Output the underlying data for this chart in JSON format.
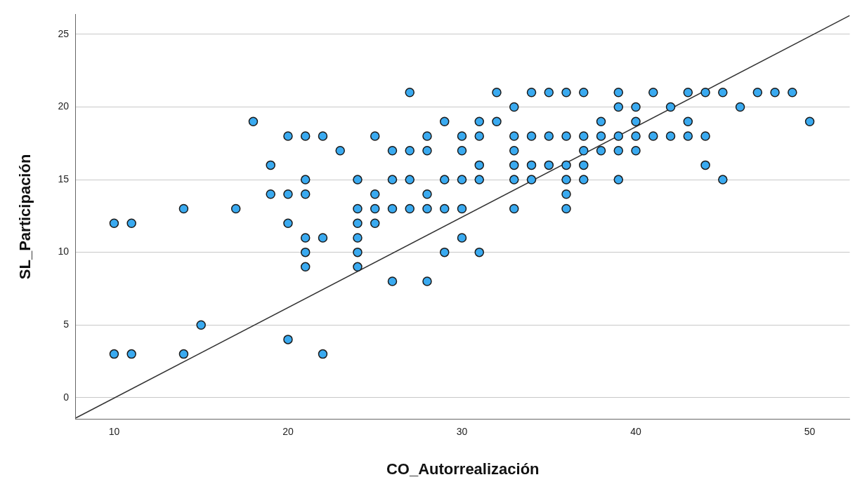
{
  "chart_data": {
    "type": "scatter",
    "xlabel": "CO_Autorrealización",
    "ylabel": "SL_Participación",
    "xlim": [
      7.8,
      52.3
    ],
    "ylim": [
      -1.5,
      26.4
    ],
    "xticks": [
      10,
      20,
      30,
      40,
      50
    ],
    "yticks": [
      0,
      5,
      10,
      15,
      20,
      25
    ],
    "grid": "y",
    "marker": "circle",
    "series": [
      {
        "color": "#3aaaf0",
        "x": [
          27,
          32,
          34,
          35,
          36,
          37,
          39,
          41,
          43,
          44,
          45,
          47,
          48,
          49,
          33,
          39,
          40,
          42,
          46,
          18,
          29,
          31,
          32,
          38,
          40,
          43,
          50,
          20,
          21,
          22,
          25,
          28,
          30,
          31,
          33,
          34,
          35,
          36,
          37,
          38,
          39,
          40,
          41,
          42,
          43,
          44,
          23,
          26,
          27,
          28,
          30,
          33,
          37,
          38,
          39,
          40,
          19,
          31,
          33,
          34,
          35,
          36,
          37,
          44,
          21,
          24,
          26,
          27,
          29,
          30,
          31,
          33,
          34,
          36,
          37,
          39,
          45,
          19,
          20,
          21,
          25,
          28,
          36,
          14,
          17,
          24,
          25,
          26,
          27,
          28,
          29,
          30,
          33,
          36,
          10,
          11,
          20,
          24,
          25,
          21,
          22,
          24,
          30,
          21,
          24,
          29,
          31,
          21,
          24,
          26,
          28,
          15,
          20,
          10,
          11,
          14,
          22
        ],
        "values": [
          21,
          21,
          21,
          21,
          21,
          21,
          21,
          21,
          21,
          21,
          21,
          21,
          21,
          21,
          20,
          20,
          20,
          20,
          20,
          19,
          19,
          19,
          19,
          19,
          19,
          19,
          19,
          18,
          18,
          18,
          18,
          18,
          18,
          18,
          18,
          18,
          18,
          18,
          18,
          18,
          18,
          18,
          18,
          18,
          18,
          18,
          17,
          17,
          17,
          17,
          17,
          17,
          17,
          17,
          17,
          17,
          16,
          16,
          16,
          16,
          16,
          16,
          16,
          16,
          15,
          15,
          15,
          15,
          15,
          15,
          15,
          15,
          15,
          15,
          15,
          15,
          15,
          14,
          14,
          14,
          14,
          14,
          14,
          13,
          13,
          13,
          13,
          13,
          13,
          13,
          13,
          13,
          13,
          13,
          12,
          12,
          12,
          12,
          12,
          11,
          11,
          11,
          11,
          10,
          10,
          10,
          10,
          9,
          9,
          8,
          8,
          5,
          4,
          3,
          3,
          3,
          3
        ]
      },
      {
        "type": "line",
        "marker": "none",
        "color": "#333333",
        "x": [
          7.8,
          52.3
        ],
        "values": [
          -1.4,
          26.3
        ]
      }
    ]
  }
}
